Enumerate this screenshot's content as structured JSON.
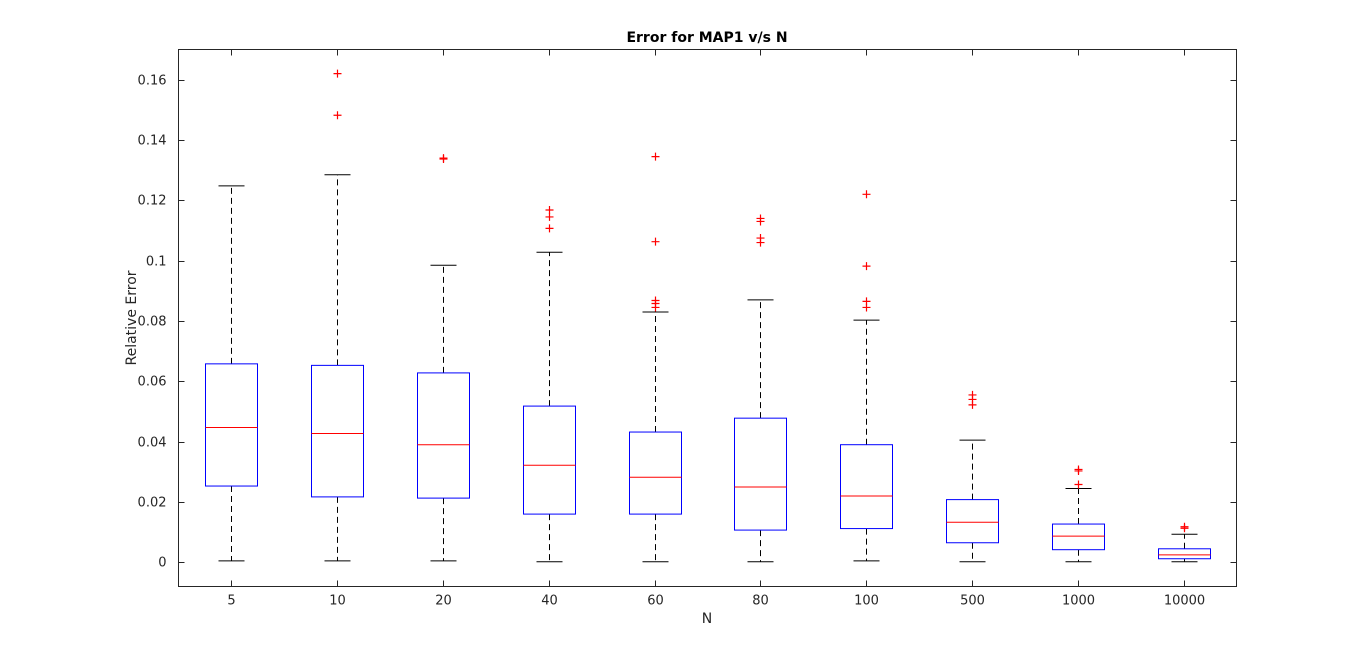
{
  "chart_data": {
    "type": "box",
    "title": "Error for MAP1 v/s N",
    "xlabel": "N",
    "ylabel": "Relative Error",
    "categories": [
      "5",
      "10",
      "20",
      "40",
      "60",
      "80",
      "100",
      "500",
      "1000",
      "10000"
    ],
    "ylim": [
      -0.008,
      0.17
    ],
    "yticks": [
      0,
      0.02,
      0.04,
      0.06,
      0.08,
      0.1,
      0.12,
      0.14,
      0.16
    ],
    "ytick_labels": [
      "0",
      "0.02",
      "0.04",
      "0.06",
      "0.08",
      "0.1",
      "0.12",
      "0.14",
      "0.16"
    ],
    "grid": false,
    "colors": {
      "box": "#0000ff",
      "median": "#ff0000",
      "whisker": "#000000",
      "outlier": "#ff0000",
      "axis": "#262626"
    },
    "boxes": [
      {
        "category": "5",
        "whisker_low": 0.0005,
        "q1": 0.0253,
        "median": 0.0447,
        "q3": 0.0658,
        "whisker_high": 0.1248,
        "outliers": []
      },
      {
        "category": "10",
        "whisker_low": 0.0005,
        "q1": 0.0217,
        "median": 0.0427,
        "q3": 0.0653,
        "whisker_high": 0.1285,
        "outliers": [
          0.1482,
          0.162
        ]
      },
      {
        "category": "20",
        "whisker_low": 0.0005,
        "q1": 0.0213,
        "median": 0.039,
        "q3": 0.0628,
        "whisker_high": 0.0985,
        "outliers": [
          0.1337,
          0.134
        ]
      },
      {
        "category": "40",
        "whisker_low": 0.0002,
        "q1": 0.016,
        "median": 0.0322,
        "q3": 0.0518,
        "whisker_high": 0.1028,
        "outliers": [
          0.1107,
          0.1145,
          0.1168
        ]
      },
      {
        "category": "60",
        "whisker_low": 0.0002,
        "q1": 0.016,
        "median": 0.0282,
        "q3": 0.0432,
        "whisker_high": 0.083,
        "outliers": [
          0.0845,
          0.0858,
          0.0868,
          0.1063,
          0.1345
        ]
      },
      {
        "category": "80",
        "whisker_low": 0.0002,
        "q1": 0.0107,
        "median": 0.025,
        "q3": 0.0478,
        "whisker_high": 0.087,
        "outliers": [
          0.106,
          0.1075,
          0.113,
          0.114
        ]
      },
      {
        "category": "100",
        "whisker_low": 0.0005,
        "q1": 0.0112,
        "median": 0.022,
        "q3": 0.039,
        "whisker_high": 0.0803,
        "outliers": [
          0.0845,
          0.0865,
          0.0982,
          0.122
        ]
      },
      {
        "category": "500",
        "whisker_low": 0.0002,
        "q1": 0.0065,
        "median": 0.0133,
        "q3": 0.0208,
        "whisker_high": 0.0405,
        "outliers": [
          0.0522,
          0.054,
          0.0555
        ]
      },
      {
        "category": "1000",
        "whisker_low": 0.0002,
        "q1": 0.0042,
        "median": 0.0087,
        "q3": 0.0127,
        "whisker_high": 0.0245,
        "outliers": [
          0.0258,
          0.0303,
          0.0308
        ]
      },
      {
        "category": "10000",
        "whisker_low": 0.0002,
        "q1": 0.0012,
        "median": 0.0025,
        "q3": 0.0045,
        "whisker_high": 0.0093,
        "outliers": [
          0.0113,
          0.0118
        ]
      }
    ]
  }
}
